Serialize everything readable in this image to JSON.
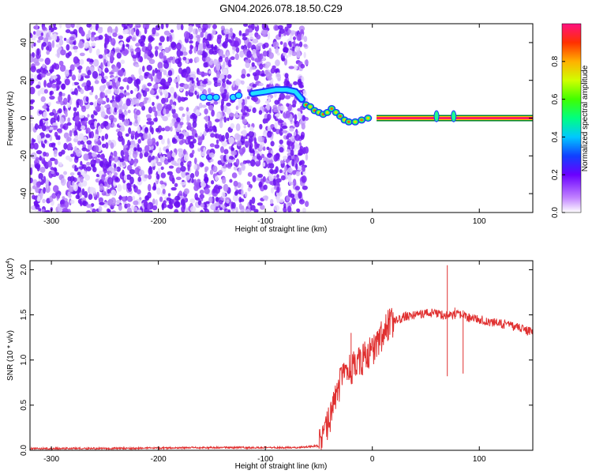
{
  "title": "GN04.2026.078.18.50.C29",
  "chart_data": [
    {
      "type": "heatmap",
      "xlabel": "Height of straight line (km)",
      "ylabel": "Frequency (Hz)",
      "xlim": [
        -320,
        150
      ],
      "ylim": [
        -50,
        50
      ],
      "x_ticks": [
        -300,
        -200,
        -100,
        0,
        100
      ],
      "y_ticks": [
        -40,
        -20,
        0,
        20,
        40
      ],
      "noise_region_x": [
        -320,
        -67
      ],
      "colorbar": {
        "label": "Normalized spectral amplitude",
        "range": [
          0,
          1
        ],
        "ticks": [
          0.0,
          0.2,
          0.4,
          0.6,
          0.8
        ]
      },
      "ridge": [
        [
          -158,
          11
        ],
        [
          -152,
          11
        ],
        [
          -146,
          11
        ],
        [
          -130,
          11
        ],
        [
          -125,
          12
        ],
        [
          -112,
          13
        ],
        [
          -100,
          14
        ],
        [
          -90,
          15
        ],
        [
          -80,
          15
        ],
        [
          -72,
          14
        ],
        [
          -66,
          10
        ],
        [
          -62,
          7
        ],
        [
          -58,
          6
        ],
        [
          -54,
          4
        ],
        [
          -50,
          3
        ],
        [
          -46,
          2
        ],
        [
          -42,
          3
        ],
        [
          -38,
          5
        ],
        [
          -34,
          3
        ],
        [
          -30,
          1
        ],
        [
          -26,
          -1
        ],
        [
          -22,
          -2
        ],
        [
          -16,
          -2
        ],
        [
          -10,
          -1
        ],
        [
          -4,
          0
        ],
        [
          4,
          0
        ],
        [
          12,
          0
        ],
        [
          150,
          0
        ]
      ],
      "ridge_markers": [
        [
          60,
          1
        ],
        [
          76,
          1
        ]
      ]
    },
    {
      "type": "line",
      "xlabel": "Height of straight line (km)",
      "ylabel": "SNR (10 * v/v)",
      "y_multiplier": "(x10^4)",
      "xlim": [
        -320,
        150
      ],
      "ylim": [
        0,
        2.1
      ],
      "x_ticks": [
        -300,
        -200,
        -100,
        0,
        100
      ],
      "y_ticks": [
        0.0,
        0.5,
        1.0,
        1.5,
        2.0
      ],
      "line_color": "#e03030",
      "series": [
        {
          "x": [
            -320,
            -250,
            -150,
            -70,
            -50,
            -45,
            -40,
            -35,
            -30,
            -25,
            -20,
            -15,
            -10,
            -5,
            0,
            5,
            10,
            15,
            20,
            25,
            30,
            40,
            50,
            60,
            65,
            70,
            75,
            80,
            90,
            100,
            110,
            120,
            130,
            140,
            150
          ],
          "y": [
            0.02,
            0.02,
            0.03,
            0.03,
            0.05,
            0.15,
            0.35,
            0.55,
            0.75,
            0.85,
            0.9,
            0.95,
            1.0,
            1.05,
            1.1,
            1.2,
            1.3,
            1.38,
            1.42,
            1.45,
            1.48,
            1.5,
            1.52,
            1.52,
            1.5,
            1.5,
            1.5,
            1.5,
            1.47,
            1.45,
            1.42,
            1.4,
            1.38,
            1.35,
            1.3
          ],
          "spikes": [
            [
              -20,
              1.3
            ],
            [
              70,
              2.05
            ],
            [
              70,
              0.82
            ],
            [
              77,
              1.58
            ],
            [
              85,
              0.85
            ],
            [
              85,
              1.55
            ]
          ]
        }
      ]
    }
  ]
}
